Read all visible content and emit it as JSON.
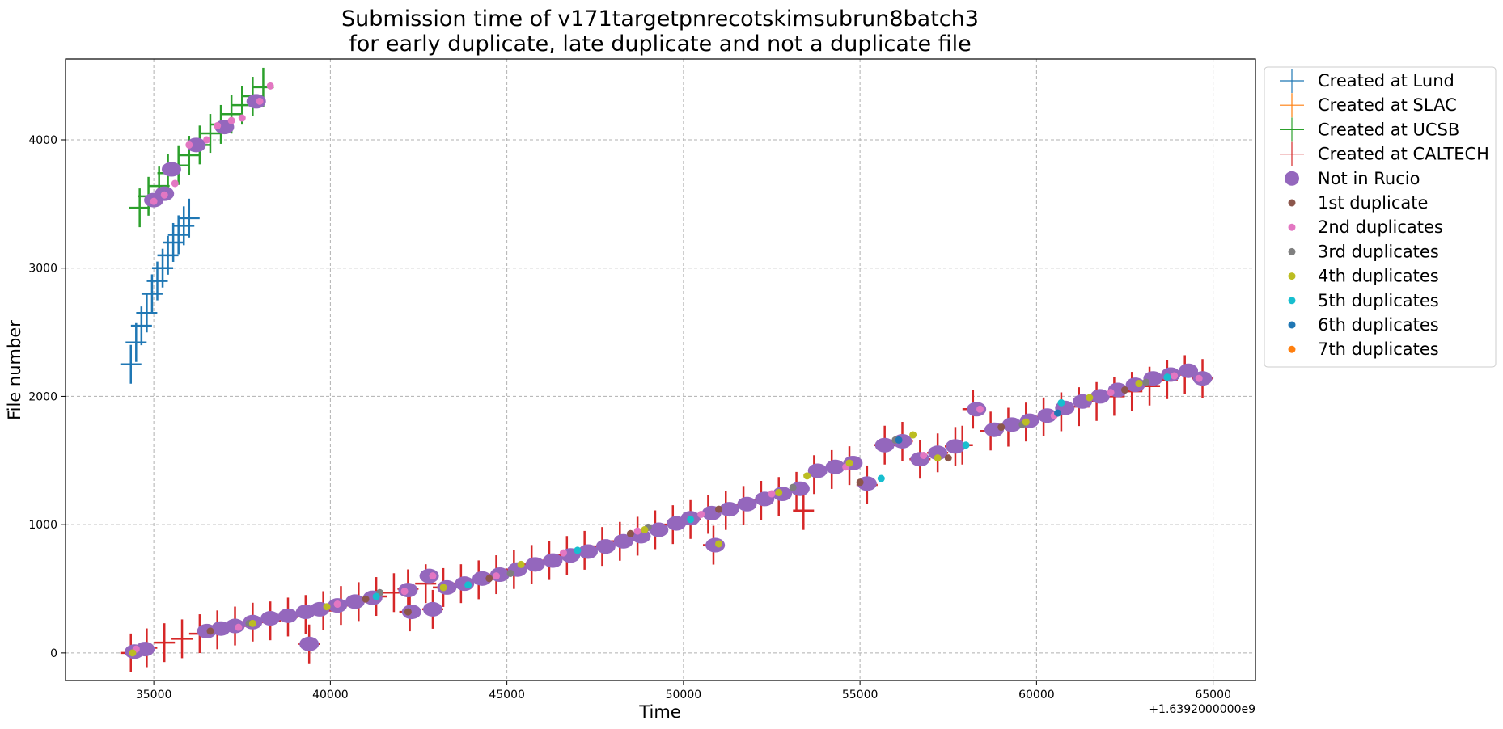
{
  "chart_data": {
    "type": "scatter",
    "title": "Submission time of v171targetpnrecotskimsubrun8batch3",
    "subtitle": "for early duplicate, late duplicate and not a duplicate file",
    "xlabel": "Time",
    "ylabel": "File number",
    "x_offset_label": "+1.6392000000e9",
    "xlim": [
      32500,
      66200
    ],
    "ylim": [
      -215,
      4630
    ],
    "x_ticks": [
      35000,
      40000,
      45000,
      50000,
      55000,
      60000,
      65000
    ],
    "x_tick_labels": [
      "35000",
      "40000",
      "45000",
      "50000",
      "55000",
      "60000",
      "65000"
    ],
    "y_ticks": [
      0,
      1000,
      2000,
      3000,
      4000
    ],
    "y_tick_labels": [
      "0",
      "1000",
      "2000",
      "3000",
      "4000"
    ],
    "grid": true,
    "legend_position": "outside-upper-right",
    "series": [
      {
        "name": "Created at Lund",
        "marker": "plus",
        "color": "#1f77b4",
        "x": [
          34350,
          34500,
          34650,
          34800,
          34950,
          35100,
          35250,
          35400,
          35550,
          35700,
          35850,
          36000
        ],
        "y": [
          2250,
          2420,
          2550,
          2650,
          2800,
          2900,
          3000,
          3100,
          3200,
          3260,
          3330,
          3390
        ]
      },
      {
        "name": "Created at SLAC",
        "marker": "plus",
        "color": "#ff7f0e",
        "x": [],
        "y": []
      },
      {
        "name": "Created at UCSB",
        "marker": "plus",
        "color": "#2ca02c",
        "x": [
          34600,
          34850,
          35150,
          35400,
          35700,
          36000,
          36300,
          36600,
          36900,
          37200,
          37500,
          37800,
          38100
        ],
        "y": [
          3470,
          3560,
          3640,
          3740,
          3800,
          3880,
          3960,
          4050,
          4120,
          4200,
          4270,
          4340,
          4410
        ]
      },
      {
        "name": "Created at CALTECH",
        "marker": "plus",
        "color": "#d62728",
        "x": [
          34350,
          34800,
          35300,
          35800,
          36300,
          36800,
          37300,
          37800,
          38300,
          38800,
          39300,
          39800,
          40300,
          40800,
          41300,
          41800,
          42200,
          42700,
          43200,
          43700,
          44200,
          44700,
          45200,
          45700,
          46200,
          46700,
          47200,
          47700,
          48200,
          48700,
          49200,
          49700,
          50200,
          50700,
          51200,
          51700,
          52200,
          52700,
          53200,
          53700,
          54200,
          54700,
          55200,
          55700,
          56200,
          56700,
          57200,
          57700,
          58200,
          58700,
          59200,
          59700,
          60200,
          60700,
          61200,
          61700,
          62200,
          62700,
          63200,
          63700,
          64200,
          64700,
          39400,
          42250,
          42900,
          50850,
          53400,
          57900
        ],
        "y": [
          0,
          40,
          80,
          110,
          150,
          180,
          210,
          240,
          250,
          280,
          300,
          330,
          370,
          400,
          440,
          470,
          500,
          540,
          510,
          540,
          570,
          610,
          650,
          690,
          720,
          760,
          800,
          830,
          870,
          910,
          960,
          1000,
          1040,
          1080,
          1110,
          1150,
          1190,
          1220,
          1260,
          1390,
          1430,
          1460,
          1310,
          1620,
          1650,
          1510,
          1560,
          1610,
          1900,
          1730,
          1760,
          1800,
          1840,
          1880,
          1920,
          1960,
          2000,
          2040,
          2080,
          2130,
          2170,
          2140,
          70,
          320,
          340,
          840,
          1110,
          1620
        ]
      },
      {
        "name": "Not in Rucio",
        "marker": "big-circle",
        "color": "#9467bd",
        "x": [
          34450,
          34750,
          35000,
          35300,
          36500,
          36900,
          37300,
          37800,
          38300,
          38800,
          39300,
          39700,
          40200,
          40700,
          41200,
          42200,
          42800,
          43300,
          43800,
          44300,
          44800,
          45300,
          45800,
          46300,
          46800,
          47300,
          47800,
          48300,
          48800,
          49300,
          49800,
          50200,
          50800,
          51300,
          51800,
          52300,
          52800,
          53300,
          53800,
          54300,
          54800,
          55200,
          55700,
          56200,
          56700,
          57200,
          57700,
          58300,
          58800,
          59300,
          59800,
          60300,
          60800,
          61300,
          61800,
          62300,
          62800,
          63300,
          63800,
          64300,
          64700,
          39400,
          42300,
          42900,
          50900,
          35500,
          36200,
          37000,
          37900
        ],
        "y": [
          10,
          30,
          3530,
          3580,
          170,
          190,
          210,
          240,
          270,
          290,
          320,
          340,
          370,
          400,
          430,
          490,
          600,
          510,
          540,
          580,
          610,
          650,
          690,
          720,
          760,
          790,
          830,
          870,
          910,
          960,
          1010,
          1050,
          1090,
          1120,
          1160,
          1200,
          1240,
          1280,
          1420,
          1450,
          1480,
          1320,
          1620,
          1650,
          1510,
          1560,
          1610,
          1900,
          1740,
          1780,
          1810,
          1850,
          1910,
          1960,
          2000,
          2050,
          2090,
          2140,
          2170,
          2200,
          2140,
          70,
          320,
          340,
          840,
          3770,
          3960,
          4100,
          4300
        ]
      },
      {
        "name": "1st duplicate",
        "marker": "dot",
        "color": "#8c564b",
        "x": [
          36600,
          41000,
          42200,
          44500,
          48500,
          51000,
          55000,
          57500,
          59000,
          62500
        ],
        "y": [
          170,
          420,
          320,
          580,
          930,
          1120,
          1330,
          1520,
          1760,
          2050
        ]
      },
      {
        "name": "2nd duplicates",
        "marker": "dot",
        "color": "#e377c2",
        "x": [
          34500,
          35000,
          35300,
          35600,
          36000,
          36500,
          36800,
          37200,
          37500,
          38000,
          38300,
          37400,
          40200,
          42100,
          42900,
          44700,
          46600,
          48700,
          50500,
          52500,
          54600,
          56800,
          58400,
          60500,
          62100,
          63900,
          64600
        ],
        "y": [
          30,
          3520,
          3570,
          3660,
          3960,
          4000,
          4110,
          4150,
          4170,
          4300,
          4420,
          200,
          380,
          480,
          600,
          600,
          780,
          950,
          1080,
          1240,
          1450,
          1540,
          1900,
          1850,
          2030,
          2160,
          2140
        ]
      },
      {
        "name": "3rd duplicates",
        "marker": "dot",
        "color": "#7f7f7f",
        "x": [
          37700,
          41400,
          45100,
          49000,
          53100,
          56000,
          59600,
          63100
        ],
        "y": [
          230,
          470,
          620,
          980,
          1290,
          1660,
          1780,
          2110
        ]
      },
      {
        "name": "4th duplicates",
        "marker": "dot",
        "color": "#bcbd22",
        "x": [
          34400,
          37800,
          39900,
          43200,
          45400,
          48900,
          51000,
          52700,
          53500,
          54700,
          56500,
          57200,
          59700,
          61500,
          62900
        ],
        "y": [
          0,
          230,
          360,
          510,
          690,
          960,
          850,
          1250,
          1380,
          1480,
          1700,
          1520,
          1800,
          1990,
          2100
        ]
      },
      {
        "name": "5th duplicates",
        "marker": "dot",
        "color": "#17becf",
        "x": [
          41300,
          43900,
          47000,
          50200,
          55600,
          58000,
          60700,
          63700
        ],
        "y": [
          440,
          530,
          800,
          1040,
          1360,
          1620,
          1950,
          2150
        ]
      },
      {
        "name": "6th duplicates",
        "marker": "dot",
        "color": "#1f77b4",
        "x": [
          56100,
          60600
        ],
        "y": [
          1660,
          1870
        ]
      },
      {
        "name": "7th duplicates",
        "marker": "dot",
        "color": "#ff7f0e",
        "x": [],
        "y": []
      }
    ]
  }
}
